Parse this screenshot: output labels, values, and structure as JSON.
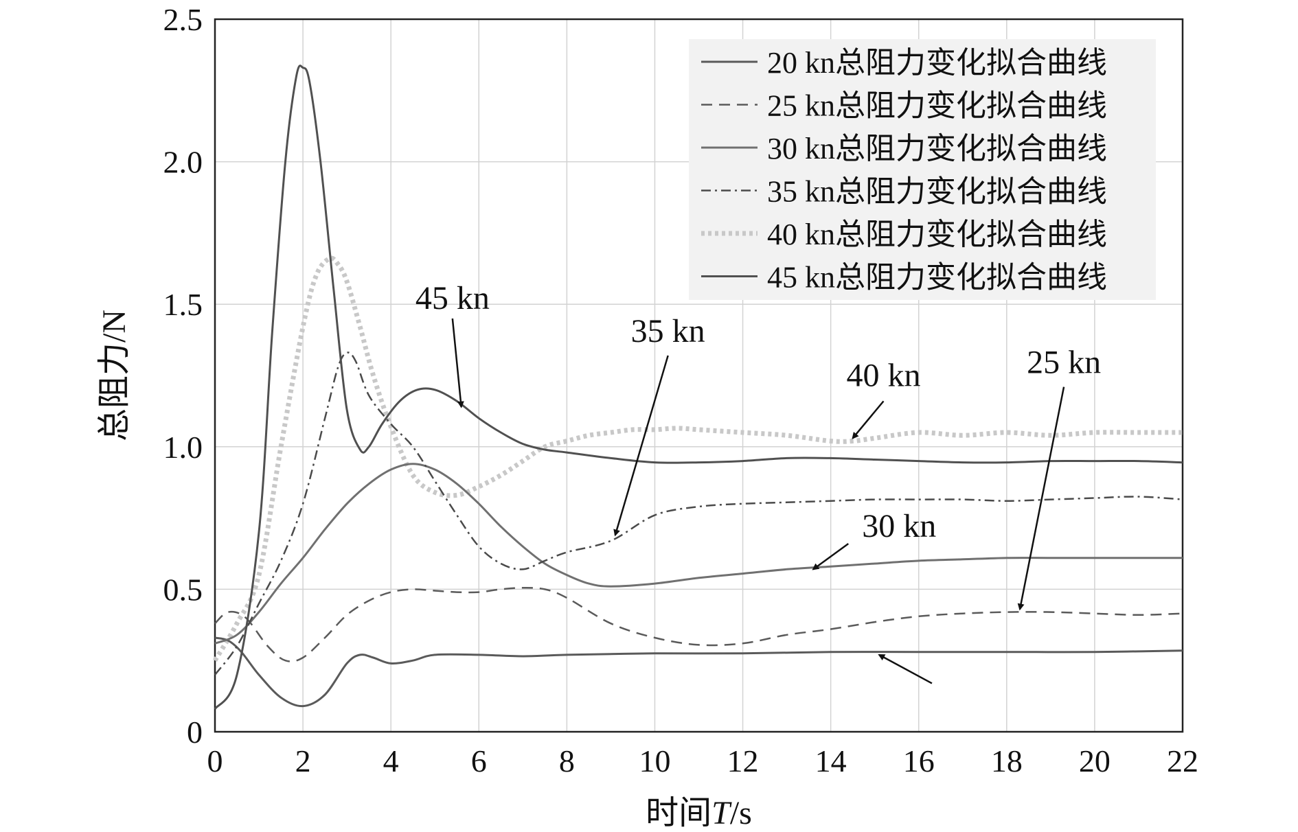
{
  "chart_data": {
    "type": "line",
    "title": "",
    "xlabel": "时间T/s",
    "xlabel_parts": [
      "时间",
      "T",
      "/s"
    ],
    "ylabel": "总阻力/N",
    "xlim": [
      0,
      22
    ],
    "ylim": [
      0,
      2.5
    ],
    "xticks": [
      0,
      2,
      4,
      6,
      8,
      10,
      12,
      14,
      16,
      18,
      20,
      22
    ],
    "xtick_labels": [
      "0",
      "2",
      "4",
      "6",
      "8",
      "10",
      "12",
      "14",
      "16",
      "18",
      "20",
      "22"
    ],
    "yticks": [
      0,
      0.5,
      1.0,
      1.5,
      2.0,
      2.5
    ],
    "ytick_labels": [
      "0",
      "0.5",
      "1.0",
      "1.5",
      "2.0",
      "2.5"
    ],
    "grid": true,
    "legend_position": "top-right",
    "series": [
      {
        "name": "20 kn总阻力变化拟合曲线",
        "style": "solid",
        "color": "#5a5a5a",
        "x": [
          0,
          0.3,
          0.6,
          1.0,
          1.5,
          2.0,
          2.5,
          3.0,
          3.3,
          3.6,
          4.0,
          4.5,
          5.0,
          6.0,
          7.0,
          8.0,
          10.0,
          12.0,
          14.0,
          16.0,
          18.0,
          20.0,
          22.0
        ],
        "y": [
          0.33,
          0.32,
          0.28,
          0.2,
          0.12,
          0.09,
          0.13,
          0.24,
          0.27,
          0.26,
          0.24,
          0.25,
          0.27,
          0.27,
          0.265,
          0.27,
          0.275,
          0.275,
          0.28,
          0.28,
          0.28,
          0.28,
          0.285
        ]
      },
      {
        "name": "25 kn总阻力变化拟合曲线",
        "style": "dashed",
        "color": "#5a5a5a",
        "x": [
          0,
          0.3,
          0.7,
          1.2,
          1.6,
          2.0,
          2.5,
          3.0,
          3.5,
          4.0,
          4.5,
          5.0,
          5.5,
          6.0,
          6.5,
          7.0,
          7.5,
          8.0,
          9.0,
          10.0,
          11.0,
          12.0,
          13.0,
          14.0,
          15.0,
          16.0,
          17.0,
          18.0,
          19.0,
          20.0,
          21.0,
          22.0
        ],
        "y": [
          0.38,
          0.42,
          0.4,
          0.3,
          0.25,
          0.26,
          0.33,
          0.41,
          0.46,
          0.49,
          0.5,
          0.495,
          0.49,
          0.49,
          0.5,
          0.505,
          0.5,
          0.47,
          0.38,
          0.33,
          0.305,
          0.31,
          0.34,
          0.36,
          0.385,
          0.405,
          0.415,
          0.42,
          0.42,
          0.415,
          0.41,
          0.415
        ]
      },
      {
        "name": "30 kn总阻力变化拟合曲线",
        "style": "solid",
        "color": "#707070",
        "x": [
          0,
          0.5,
          1.0,
          1.5,
          2.0,
          2.5,
          3.0,
          3.5,
          4.0,
          4.5,
          5.0,
          5.5,
          6.0,
          6.5,
          7.0,
          7.5,
          8.0,
          8.5,
          9.0,
          10.0,
          11.0,
          12.0,
          13.0,
          14.0,
          15.0,
          16.0,
          17.0,
          18.0,
          19.0,
          20.0,
          21.0,
          22.0
        ],
        "y": [
          0.31,
          0.34,
          0.42,
          0.52,
          0.61,
          0.71,
          0.8,
          0.87,
          0.92,
          0.94,
          0.92,
          0.87,
          0.8,
          0.72,
          0.65,
          0.59,
          0.55,
          0.52,
          0.51,
          0.52,
          0.54,
          0.555,
          0.57,
          0.58,
          0.59,
          0.6,
          0.605,
          0.61,
          0.61,
          0.61,
          0.61,
          0.61
        ]
      },
      {
        "name": "35 kn总阻力变化拟合曲线",
        "style": "dashdot",
        "color": "#4a4a4a",
        "x": [
          0,
          0.5,
          1.0,
          1.5,
          2.0,
          2.5,
          2.8,
          3.0,
          3.2,
          3.5,
          4.0,
          4.5,
          5.0,
          5.5,
          6.0,
          6.5,
          7.0,
          7.5,
          8.0,
          9.0,
          10.0,
          11.0,
          12.0,
          13.0,
          14.0,
          15.0,
          16.0,
          17.0,
          18.0,
          19.0,
          20.0,
          21.0,
          22.0
        ],
        "y": [
          0.2,
          0.3,
          0.45,
          0.6,
          0.8,
          1.1,
          1.28,
          1.33,
          1.3,
          1.18,
          1.08,
          1.0,
          0.88,
          0.76,
          0.65,
          0.59,
          0.57,
          0.6,
          0.63,
          0.67,
          0.76,
          0.79,
          0.8,
          0.805,
          0.81,
          0.815,
          0.815,
          0.815,
          0.81,
          0.815,
          0.82,
          0.825,
          0.815
        ]
      },
      {
        "name": "40 kn总阻力变化拟合曲线",
        "style": "dotted",
        "color": "#c8c8c8",
        "x": [
          0,
          0.5,
          1.0,
          1.5,
          2.0,
          2.3,
          2.6,
          2.8,
          3.0,
          3.3,
          3.6,
          4.0,
          4.5,
          5.0,
          5.5,
          6.0,
          6.5,
          7.0,
          7.5,
          8.0,
          8.5,
          9.0,
          9.5,
          10.0,
          10.5,
          11.0,
          12.0,
          13.0,
          14.0,
          14.5,
          15.0,
          16.0,
          17.0,
          18.0,
          19.0,
          20.0,
          21.0,
          22.0
        ],
        "y": [
          0.25,
          0.38,
          0.55,
          1.0,
          1.42,
          1.6,
          1.66,
          1.64,
          1.58,
          1.42,
          1.25,
          1.07,
          0.9,
          0.84,
          0.83,
          0.86,
          0.9,
          0.95,
          1.0,
          1.02,
          1.04,
          1.05,
          1.06,
          1.06,
          1.065,
          1.06,
          1.05,
          1.04,
          1.02,
          1.02,
          1.03,
          1.05,
          1.04,
          1.05,
          1.04,
          1.05,
          1.05,
          1.05
        ]
      },
      {
        "name": "45 kn总阻力变化拟合曲线",
        "style": "solid",
        "color": "#505050",
        "x": [
          0,
          0.5,
          1.0,
          1.3,
          1.6,
          1.85,
          2.0,
          2.15,
          2.4,
          2.7,
          3.0,
          3.3,
          3.5,
          3.8,
          4.2,
          4.6,
          5.0,
          5.5,
          6.0,
          6.5,
          7.0,
          7.5,
          8.0,
          9.0,
          10.0,
          11.0,
          12.0,
          13.0,
          14.0,
          15.0,
          16.0,
          17.0,
          18.0,
          19.0,
          20.0,
          21.0,
          22.0
        ],
        "y": [
          0.08,
          0.2,
          0.7,
          1.4,
          2.0,
          2.3,
          2.33,
          2.28,
          2.0,
          1.55,
          1.13,
          0.99,
          1.0,
          1.08,
          1.16,
          1.2,
          1.2,
          1.16,
          1.1,
          1.05,
          1.01,
          0.99,
          0.98,
          0.96,
          0.945,
          0.945,
          0.95,
          0.96,
          0.96,
          0.955,
          0.95,
          0.945,
          0.945,
          0.95,
          0.95,
          0.95,
          0.945
        ]
      }
    ],
    "annotations": [
      {
        "text": "45 kn",
        "arrow_from": [
          5.4,
          1.45
        ],
        "arrow_to": [
          5.6,
          1.14
        ]
      },
      {
        "text": "35 kn",
        "arrow_from": [
          10.3,
          1.32
        ],
        "arrow_to": [
          9.1,
          0.69
        ]
      },
      {
        "text": "40 kn",
        "arrow_from": [
          15.2,
          1.16
        ],
        "arrow_to": [
          14.5,
          1.03
        ]
      },
      {
        "text": "25 kn",
        "arrow_from": [
          19.3,
          1.21
        ],
        "arrow_to": [
          18.3,
          0.43
        ]
      },
      {
        "text": "30 kn",
        "arrow_from": [
          14.4,
          0.66
        ],
        "arrow_to": [
          13.6,
          0.57
        ]
      },
      {
        "text": "",
        "arrow_from": [
          16.3,
          0.17
        ],
        "arrow_to": [
          15.1,
          0.27
        ]
      }
    ]
  }
}
